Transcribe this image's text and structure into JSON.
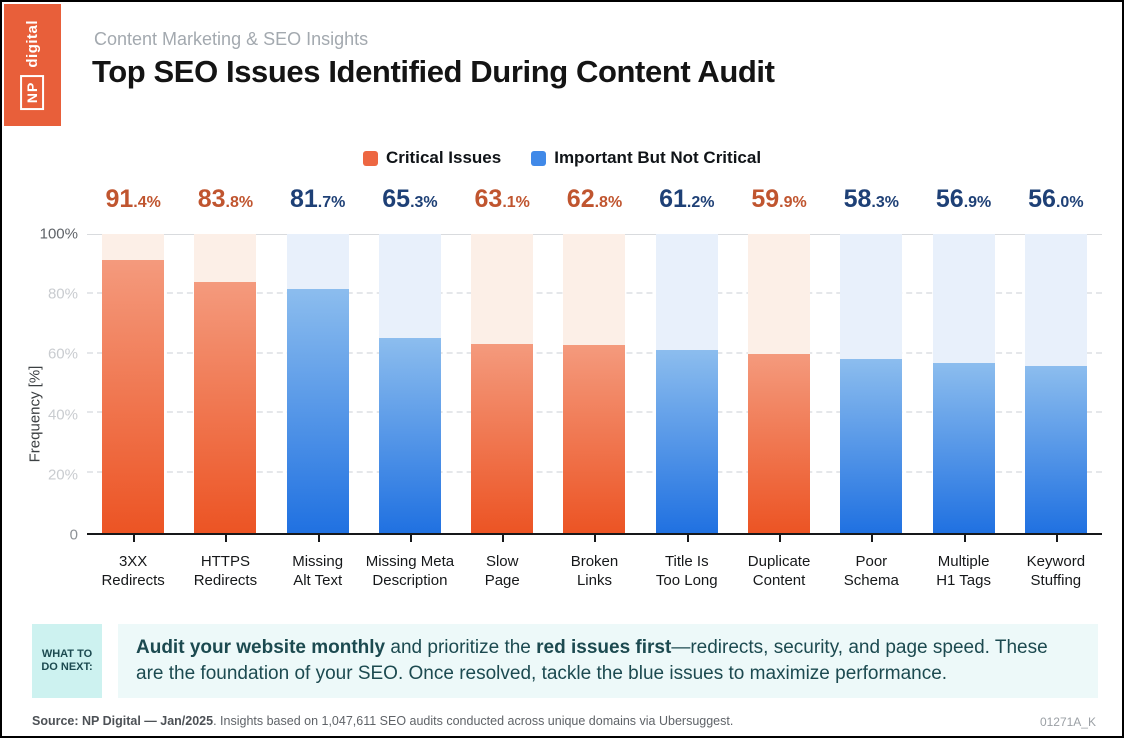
{
  "logo": {
    "np": "NP",
    "digital": "digital",
    "bg_color": "#e85f3a"
  },
  "header": {
    "eyebrow": "Content Marketing & SEO Insights",
    "title": "Top SEO Issues Identified During Content Audit"
  },
  "legend": [
    {
      "label": "Critical Issues",
      "color": "#ed6742"
    },
    {
      "label": "Important But Not Critical",
      "color": "#4089e8"
    }
  ],
  "chart_data": {
    "type": "bar",
    "title": "Top SEO Issues Identified During Content Audit",
    "ylabel": "Frequency [%]",
    "ylim": [
      0,
      100
    ],
    "yticks": [
      "100%",
      "80%",
      "60%",
      "40%",
      "20%",
      "0"
    ],
    "grid": "horizontal-dashed",
    "legend_position": "top-center",
    "categories": [
      "3XX Redirects",
      "HTTPS Redirects",
      "Missing Alt Text",
      "Missing Meta Description",
      "Slow Page",
      "Broken Links",
      "Title Is Too Long",
      "Duplicate Content",
      "Poor Schema",
      "Multiple H1 Tags",
      "Keyword Stuffing"
    ],
    "category_lines": [
      [
        "3XX",
        "Redirects"
      ],
      [
        "HTTPS",
        "Redirects"
      ],
      [
        "Missing",
        "Alt Text"
      ],
      [
        "Missing Meta",
        "Description"
      ],
      [
        "Slow",
        "Page"
      ],
      [
        "Broken",
        "Links"
      ],
      [
        "Title Is",
        "Too Long"
      ],
      [
        "Duplicate",
        "Content"
      ],
      [
        "Poor",
        "Schema"
      ],
      [
        "Multiple",
        "H1 Tags"
      ],
      [
        "Keyword",
        "Stuffing"
      ]
    ],
    "values": [
      91.4,
      83.8,
      81.7,
      65.3,
      63.1,
      62.8,
      61.2,
      59.9,
      58.3,
      56.9,
      56.0
    ],
    "value_labels": [
      "91.4%",
      "83.8%",
      "81.7%",
      "65.3%",
      "63.1%",
      "62.8%",
      "61.2%",
      "59.9%",
      "58.3%",
      "56.9%",
      "56.0%"
    ],
    "severity": [
      "critical",
      "critical",
      "important",
      "important",
      "critical",
      "critical",
      "important",
      "critical",
      "important",
      "important",
      "important"
    ]
  },
  "colors": {
    "critical_bar_top": "#f49a7d",
    "critical_bar_bottom": "#ec5424",
    "important_bar_top": "#8cbdee",
    "important_bar_bottom": "#2071e1",
    "critical_bg_column": "#fcefe7",
    "important_bg_column": "#e8f0fb",
    "value_label_critical": "#c0552f",
    "value_label_important": "#1e4076",
    "ytick_top": "#5f6368",
    "ytick_mid": "#c9ccd0",
    "ytick_zero": "#8d9196",
    "badge_bg": "#cdf2f0",
    "callout_bg": "#edf9f9",
    "callout_text": "#1c4a50"
  },
  "callout": {
    "badge_lines": [
      "WHAT TO",
      "DO NEXT:"
    ],
    "segments": [
      {
        "text": "Audit your website monthly",
        "bold": true
      },
      {
        "text": " and prioritize the ",
        "bold": false
      },
      {
        "text": "red issues first",
        "bold": true
      },
      {
        "text": "—redirects, security, and page speed. These are the foundation of your SEO. Once resolved, tackle the blue issues to maximize performance.",
        "bold": false
      }
    ]
  },
  "footer": {
    "segments": [
      {
        "text": "Source: NP Digital — Jan/2025",
        "bold": true
      },
      {
        "text": ". Insights based on 1,047,611 SEO audits conducted across unique domains via Ubersuggest.",
        "bold": false
      }
    ],
    "code": "01271A_K"
  }
}
